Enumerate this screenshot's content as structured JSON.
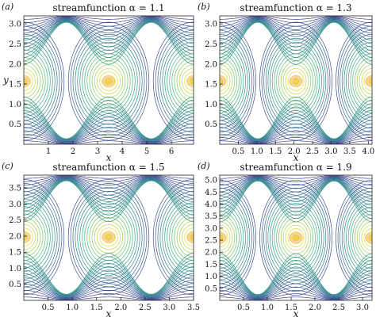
{
  "chart_data": [
    {
      "type": "contour",
      "panel_label": "(a)",
      "title": "streamfunction α = 1.1",
      "xlabel": "x",
      "ylabel": "y",
      "xlim": [
        0,
        6.9
      ],
      "ylim": [
        0,
        3.2
      ],
      "xticks": [
        1,
        2,
        3,
        4,
        5,
        6
      ],
      "xtick_labels": [
        "1",
        "2",
        "3",
        "4",
        "5",
        "6"
      ],
      "yticks": [
        0.5,
        1.0,
        1.5,
        2.0,
        2.5,
        3.0
      ],
      "ytick_labels": [
        "0.5",
        "1.0",
        "1.5",
        "2.0",
        "2.5",
        "3.0"
      ],
      "centers": [
        [
          0,
          1.57
        ],
        [
          3.45,
          1.57
        ],
        [
          6.9,
          1.57
        ]
      ],
      "colormap": [
        "#44337a",
        "#3b5b9a",
        "#2f8b8c",
        "#3fb27f",
        "#8fcf5a",
        "#e8d83a",
        "#f0a030"
      ],
      "grid": false
    },
    {
      "type": "contour",
      "panel_label": "(b)",
      "title": "streamfunction α = 1.3",
      "xlabel": "x",
      "ylabel": "",
      "xlim": [
        0,
        4.1
      ],
      "ylim": [
        0,
        3.2
      ],
      "xticks": [
        0.5,
        1.0,
        1.5,
        2.0,
        2.5,
        3.0,
        3.5,
        4.0
      ],
      "xtick_labels": [
        "0.5",
        "1.0",
        "1.5",
        "2.0",
        "2.5",
        "3.0",
        "3.5",
        "4.0"
      ],
      "yticks": [
        0.5,
        1.0,
        1.5,
        2.0,
        2.5,
        3.0
      ],
      "ytick_labels": [
        "0.5",
        "1.0",
        "1.5",
        "2.0",
        "2.5",
        "3.0"
      ],
      "centers": [
        [
          0,
          1.57
        ],
        [
          2.05,
          1.57
        ],
        [
          4.1,
          1.57
        ]
      ],
      "colormap": [
        "#44337a",
        "#3b5b9a",
        "#2f8b8c",
        "#3fb27f",
        "#8fcf5a",
        "#e8d83a",
        "#f0a030"
      ],
      "grid": false
    },
    {
      "type": "contour",
      "panel_label": "(c)",
      "title": "streamfunction α = 1.5",
      "xlabel": "x",
      "ylabel": "",
      "xlim": [
        0,
        3.5
      ],
      "ylim": [
        0,
        3.9
      ],
      "xticks": [
        0.5,
        1.0,
        1.5,
        2.0,
        2.5,
        3.0,
        3.5
      ],
      "xtick_labels": [
        "0.5",
        "1.0",
        "1.5",
        "2.0",
        "2.5",
        "3.0",
        "3.5"
      ],
      "yticks": [
        0.5,
        1.0,
        1.5,
        2.0,
        2.5,
        3.0,
        3.5
      ],
      "ytick_labels": [
        "0.5",
        "1.0",
        "1.5",
        "2.0",
        "2.5",
        "3.0",
        "3.5"
      ],
      "centers": [
        [
          0,
          1.97
        ],
        [
          1.75,
          1.97
        ],
        [
          3.5,
          1.97
        ]
      ],
      "colormap": [
        "#44337a",
        "#3b5b9a",
        "#2f8b8c",
        "#3fb27f",
        "#8fcf5a",
        "#e8d83a",
        "#f0a030"
      ],
      "grid": false
    },
    {
      "type": "contour",
      "panel_label": "(d)",
      "title": "streamfunction α = 1.9",
      "xlabel": "x",
      "ylabel": "",
      "xlim": [
        0,
        3.2
      ],
      "ylim": [
        0,
        5.2
      ],
      "xticks": [
        0.5,
        1.0,
        1.5,
        2.0,
        2.5,
        3.0
      ],
      "xtick_labels": [
        "0.5",
        "1.0",
        "1.5",
        "2.0",
        "2.5",
        "3.0"
      ],
      "yticks": [
        0.5,
        1.0,
        1.5,
        2.0,
        2.5,
        3.0,
        3.5,
        4.0,
        4.5,
        5.0
      ],
      "ytick_labels": [
        "0.5",
        "1.0",
        "1.5",
        "2.0",
        "2.5",
        "3.0",
        "3.5",
        "4.0",
        "4.5",
        "5.0"
      ],
      "centers": [
        [
          0,
          2.6
        ],
        [
          1.6,
          2.6
        ],
        [
          3.2,
          2.6
        ]
      ],
      "colormap": [
        "#44337a",
        "#3b5b9a",
        "#2f8b8c",
        "#3fb27f",
        "#8fcf5a",
        "#e8d83a",
        "#f0a030"
      ],
      "grid": false
    }
  ]
}
